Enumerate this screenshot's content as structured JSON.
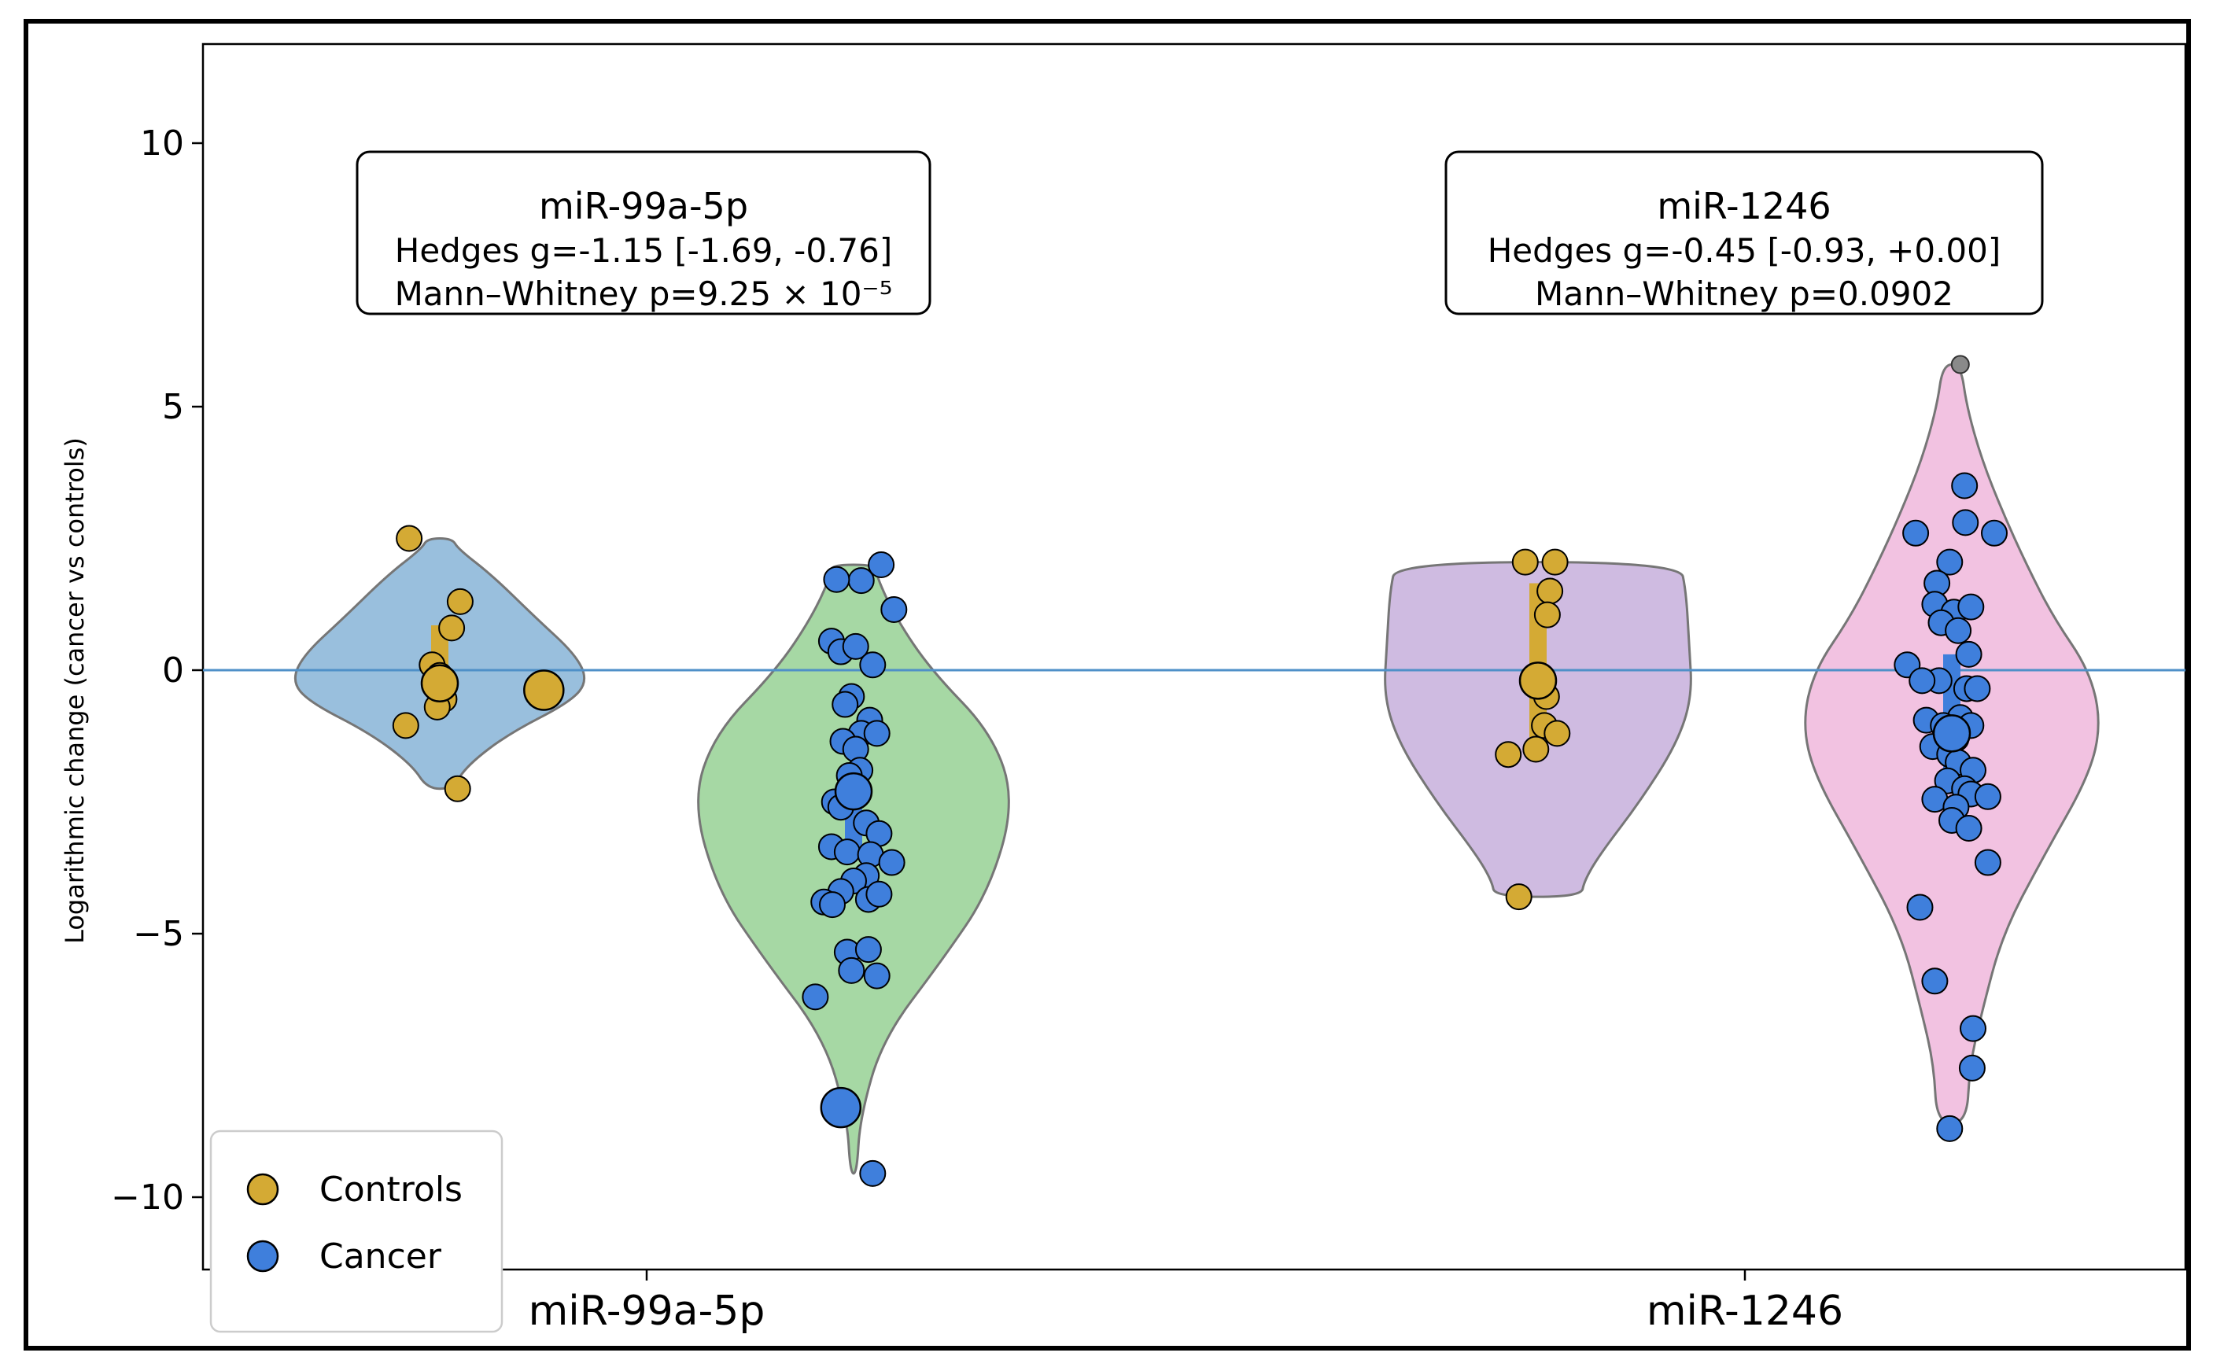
{
  "chart_data": {
    "type": "violin+strip",
    "ylabel": "Logarithmic change (cancer vs controls)",
    "ylim": [
      -11.5,
      12
    ],
    "yticks": [
      10,
      5,
      0,
      -5,
      -10
    ],
    "ytick_labels": [
      "10",
      "5",
      "0",
      "−5",
      "−10"
    ],
    "reference_line_y": 0,
    "categories": [
      "miR-99a-5p",
      "miR-1246"
    ],
    "legend": {
      "position": "bottom-left",
      "entries": [
        {
          "label": "Controls",
          "color": "#d4aa34"
        },
        {
          "label": "Cancer",
          "color": "#3f7fdc"
        }
      ]
    },
    "annotations": [
      {
        "title": "miR-99a-5p",
        "line1": "Hedges g=-1.15 [-1.69, -0.76]",
        "line2": "Mann–Whitney p=9.25 × 10⁻⁵"
      },
      {
        "title": "miR-1246",
        "line1": "Hedges g=-0.45 [-0.93, +0.00]",
        "line2": "Mann–Whitney p=0.0902"
      }
    ],
    "groups": [
      {
        "name": "miR-99a-5p Controls",
        "category_index": 0,
        "series": "Controls",
        "violin_fill": "#94bcdc",
        "violin_range": [
          -2.25,
          2.5
        ],
        "profile": [
          [
            -2.25,
            0.08
          ],
          [
            -1.8,
            0.18
          ],
          [
            -1.2,
            0.45
          ],
          [
            -0.6,
            0.85
          ],
          [
            -0.2,
            0.96
          ],
          [
            0.3,
            0.88
          ],
          [
            1.0,
            0.62
          ],
          [
            1.8,
            0.34
          ],
          [
            2.3,
            0.12
          ],
          [
            2.5,
            0.08
          ]
        ],
        "mean": -0.3,
        "ci": [
          -0.7,
          0.85
        ],
        "points": [
          {
            "dx": -0.72,
            "y": 2.5
          },
          {
            "dx": 0.48,
            "y": 1.3
          },
          {
            "dx": 0.28,
            "y": 0.8
          },
          {
            "dx": -0.18,
            "y": 0.1
          },
          {
            "dx": 0.0,
            "y": -0.1
          },
          {
            "dx": 0.1,
            "y": -0.55
          },
          {
            "dx": -0.06,
            "y": -0.7
          },
          {
            "dx": -0.8,
            "y": -1.05
          },
          {
            "dx": 0.42,
            "y": -2.25
          }
        ],
        "mean_point": {
          "dx": 0.0,
          "y": -0.25
        },
        "outside_point": {
          "dx": 2.45,
          "y": -0.38
        }
      },
      {
        "name": "miR-99a-5p Cancer",
        "category_index": 0,
        "series": "Cancer",
        "violin_fill": "#a2d6a0",
        "violin_range": [
          -9.55,
          2.0
        ],
        "profile": [
          [
            -9.55,
            0.02
          ],
          [
            -8.5,
            0.04
          ],
          [
            -7.0,
            0.18
          ],
          [
            -5.5,
            0.55
          ],
          [
            -4.2,
            0.84
          ],
          [
            -2.5,
            1.0
          ],
          [
            -1.2,
            0.86
          ],
          [
            0.0,
            0.48
          ],
          [
            1.0,
            0.26
          ],
          [
            1.8,
            0.14
          ],
          [
            2.0,
            0.14
          ]
        ],
        "mean": -2.7,
        "ci": [
          -3.4,
          -2.0
        ],
        "points": [
          {
            "dx": 0.65,
            "y": 2.0
          },
          {
            "dx": 0.18,
            "y": 1.7
          },
          {
            "dx": -0.4,
            "y": 1.72
          },
          {
            "dx": 0.95,
            "y": 1.15
          },
          {
            "dx": -0.52,
            "y": 0.55
          },
          {
            "dx": -0.3,
            "y": 0.35
          },
          {
            "dx": 0.05,
            "y": 0.45
          },
          {
            "dx": 0.45,
            "y": 0.1
          },
          {
            "dx": -0.05,
            "y": -0.5
          },
          {
            "dx": -0.2,
            "y": -0.65
          },
          {
            "dx": 0.38,
            "y": -0.95
          },
          {
            "dx": 0.18,
            "y": -1.2
          },
          {
            "dx": 0.55,
            "y": -1.2
          },
          {
            "dx": -0.25,
            "y": -1.35
          },
          {
            "dx": 0.05,
            "y": -1.5
          },
          {
            "dx": 0.15,
            "y": -1.9
          },
          {
            "dx": -0.1,
            "y": -2.0
          },
          {
            "dx": -0.45,
            "y": -2.5
          },
          {
            "dx": -0.3,
            "y": -2.6
          },
          {
            "dx": 0.3,
            "y": -2.9
          },
          {
            "dx": 0.6,
            "y": -3.1
          },
          {
            "dx": -0.52,
            "y": -3.35
          },
          {
            "dx": -0.15,
            "y": -3.45
          },
          {
            "dx": 0.4,
            "y": -3.5
          },
          {
            "dx": 0.9,
            "y": -3.65
          },
          {
            "dx": 0.3,
            "y": -3.9
          },
          {
            "dx": 0.0,
            "y": -4.0
          },
          {
            "dx": -0.3,
            "y": -4.2
          },
          {
            "dx": -0.7,
            "y": -4.4
          },
          {
            "dx": -0.5,
            "y": -4.45
          },
          {
            "dx": 0.35,
            "y": -4.35
          },
          {
            "dx": 0.6,
            "y": -4.25
          },
          {
            "dx": -0.15,
            "y": -5.35
          },
          {
            "dx": 0.35,
            "y": -5.3
          },
          {
            "dx": -0.05,
            "y": -5.7
          },
          {
            "dx": 0.55,
            "y": -5.8
          },
          {
            "dx": -0.9,
            "y": -6.2
          },
          {
            "dx": 0.45,
            "y": -9.55
          }
        ],
        "mean_point": {
          "dx": 0.0,
          "y": -2.3
        },
        "extra_large_points": [
          {
            "dx": -0.3,
            "y": -8.3
          }
        ]
      },
      {
        "name": "miR-1246 Controls",
        "category_index": 1,
        "series": "Controls",
        "violin_fill": "#cdb8e0",
        "violin_range": [
          -4.3,
          2.05
        ],
        "profile": [
          [
            -4.3,
            0.28
          ],
          [
            -4.0,
            0.3
          ],
          [
            -3.5,
            0.4
          ],
          [
            -2.5,
            0.66
          ],
          [
            -1.4,
            0.9
          ],
          [
            -0.5,
            1.0
          ],
          [
            0.5,
            0.98
          ],
          [
            1.5,
            0.96
          ],
          [
            2.05,
            0.92
          ]
        ],
        "mean": -0.2,
        "ci": [
          -1.3,
          1.65
        ],
        "points": [
          {
            "dx": -0.3,
            "y": 2.05
          },
          {
            "dx": 0.4,
            "y": 2.05
          },
          {
            "dx": 0.28,
            "y": 1.5
          },
          {
            "dx": 0.22,
            "y": 1.05
          },
          {
            "dx": 0.2,
            "y": -0.5
          },
          {
            "dx": 0.15,
            "y": -1.05
          },
          {
            "dx": 0.45,
            "y": -1.2
          },
          {
            "dx": -0.05,
            "y": -1.5
          },
          {
            "dx": -0.7,
            "y": -1.6
          },
          {
            "dx": -0.45,
            "y": -4.3
          }
        ],
        "mean_point": {
          "dx": 0.0,
          "y": -0.2
        }
      },
      {
        "name": "miR-1246 Cancer",
        "category_index": 1,
        "series": "Cancer",
        "violin_fill": "#f2bfe0",
        "violin_range": [
          -8.6,
          5.8
        ],
        "profile": [
          [
            -8.6,
            0.1
          ],
          [
            -7.5,
            0.12
          ],
          [
            -6.5,
            0.2
          ],
          [
            -5.0,
            0.34
          ],
          [
            -3.5,
            0.62
          ],
          [
            -2.0,
            0.92
          ],
          [
            -1.0,
            1.0
          ],
          [
            0.0,
            0.92
          ],
          [
            1.0,
            0.68
          ],
          [
            2.0,
            0.5
          ],
          [
            3.0,
            0.34
          ],
          [
            4.0,
            0.2
          ],
          [
            5.0,
            0.1
          ],
          [
            5.8,
            0.06
          ]
        ],
        "mean": -1.2,
        "ci": [
          -2.0,
          0.3
        ],
        "points": [
          {
            "dx": 0.3,
            "y": 3.5
          },
          {
            "dx": 0.32,
            "y": 2.8
          },
          {
            "dx": -0.85,
            "y": 2.6
          },
          {
            "dx": 1.0,
            "y": 2.6
          },
          {
            "dx": -0.05,
            "y": 2.05
          },
          {
            "dx": -0.35,
            "y": 1.65
          },
          {
            "dx": -0.4,
            "y": 1.25
          },
          {
            "dx": 0.05,
            "y": 1.1
          },
          {
            "dx": 0.45,
            "y": 1.2
          },
          {
            "dx": -0.25,
            "y": 0.9
          },
          {
            "dx": 0.15,
            "y": 0.75
          },
          {
            "dx": -1.05,
            "y": 0.1
          },
          {
            "dx": 0.4,
            "y": 0.3
          },
          {
            "dx": -0.3,
            "y": -0.2
          },
          {
            "dx": -0.7,
            "y": -0.2
          },
          {
            "dx": 0.35,
            "y": -0.35
          },
          {
            "dx": 0.6,
            "y": -0.35
          },
          {
            "dx": -0.6,
            "y": -0.95
          },
          {
            "dx": 0.2,
            "y": -0.9
          },
          {
            "dx": -0.2,
            "y": -1.05
          },
          {
            "dx": 0.45,
            "y": -1.05
          },
          {
            "dx": 0.1,
            "y": -1.3
          },
          {
            "dx": -0.45,
            "y": -1.45
          },
          {
            "dx": -0.05,
            "y": -1.6
          },
          {
            "dx": 0.15,
            "y": -1.75
          },
          {
            "dx": 0.5,
            "y": -1.9
          },
          {
            "dx": -0.1,
            "y": -2.1
          },
          {
            "dx": 0.3,
            "y": -2.25
          },
          {
            "dx": 0.45,
            "y": -2.35
          },
          {
            "dx": 0.85,
            "y": -2.4
          },
          {
            "dx": -0.4,
            "y": -2.45
          },
          {
            "dx": 0.1,
            "y": -2.6
          },
          {
            "dx": 0.0,
            "y": -2.85
          },
          {
            "dx": 0.4,
            "y": -3.0
          },
          {
            "dx": 0.85,
            "y": -3.65
          },
          {
            "dx": -0.75,
            "y": -4.5
          },
          {
            "dx": -0.4,
            "y": -5.9
          },
          {
            "dx": 0.5,
            "y": -6.8
          },
          {
            "dx": 0.48,
            "y": -7.55
          },
          {
            "dx": -0.05,
            "y": -8.7
          }
        ],
        "mean_point": {
          "dx": 0.0,
          "y": -1.2
        },
        "outlier_grey": {
          "dx": 0.2,
          "y": 5.8
        }
      }
    ]
  }
}
